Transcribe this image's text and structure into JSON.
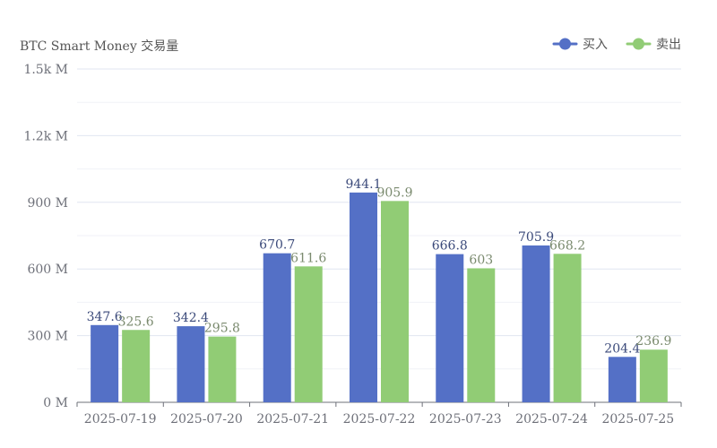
{
  "chart_data": {
    "type": "bar",
    "ylabel": "BTC Smart Money 交易量",
    "categories": [
      "2025-07-19",
      "2025-07-20",
      "2025-07-21",
      "2025-07-22",
      "2025-07-23",
      "2025-07-24",
      "2025-07-25"
    ],
    "series": [
      {
        "name": "买入",
        "color": "#5470c6",
        "labelColor": "#3b4a7a",
        "values": [
          347.6,
          342.4,
          670.7,
          944.1,
          666.8,
          705.9,
          204.4
        ]
      },
      {
        "name": "卖出",
        "color": "#91cc75",
        "labelColor": "#7a8a6e",
        "values": [
          325.6,
          295.8,
          611.6,
          905.9,
          603,
          668.2,
          236.9
        ]
      }
    ],
    "ylim": [
      0,
      1500
    ],
    "yticks": [
      0,
      300,
      600,
      900,
      1200,
      1500
    ],
    "ytick_labels": [
      "0 M",
      "300 M",
      "600 M",
      "900 M",
      "1.2k M",
      "1.5k M"
    ],
    "grid": true,
    "legend": "top-right"
  }
}
